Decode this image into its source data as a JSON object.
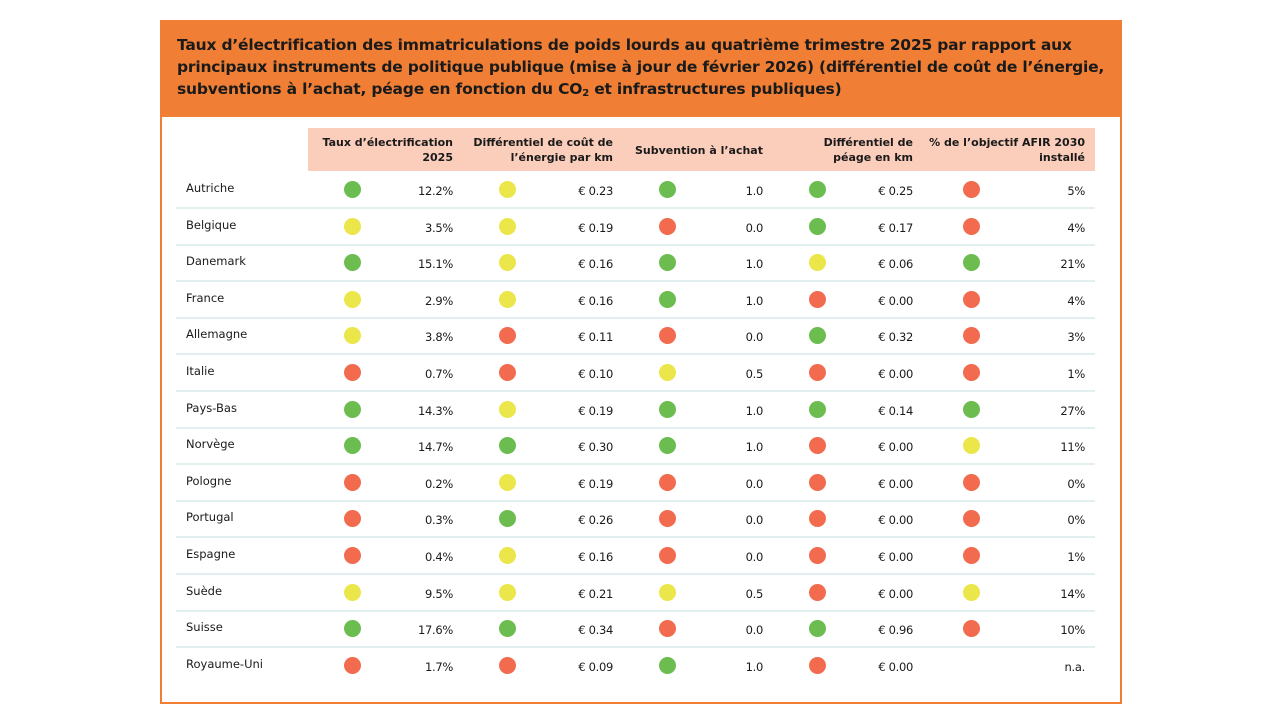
{
  "title": {
    "line1": "Taux d’électrification des immatriculations de poids lourds au quatrième trimestre 2025 par rapport aux",
    "line2": "principaux instruments de politique publique (mise à jour de février 2026) (différentiel de coût de l’énergie,",
    "line3_before_sub": "subventions à l’achat, péage en fonction du CO",
    "line3_sub": "2",
    "line3_after_sub": " et infrastructures publiques)"
  },
  "colors": {
    "brand": "#f07f35",
    "header_band": "#fbcdbb",
    "green": "#6cbd4f",
    "yellow": "#ebe649",
    "red": "#f26b4e",
    "divider": "#e2eef0"
  },
  "columns": [
    {
      "key": "elec",
      "line1": "Taux d’électrification",
      "line2": "2025"
    },
    {
      "key": "energy",
      "line1": "Différentiel de coût de",
      "line2": "l’énergie par km"
    },
    {
      "key": "subsidy",
      "line1": "Subvention à l’achat",
      "line2": ""
    },
    {
      "key": "toll",
      "line1": "Différentiel de",
      "line2": "péage en km"
    },
    {
      "key": "afir",
      "line1": "% de l’objectif AFIR 2030",
      "line2": "installé"
    }
  ],
  "chart_data": {
    "type": "table",
    "title": "Taux d’électrification des immatriculations de poids lourds au quatrième trimestre 2025 par rapport aux principaux instruments de politique publique (mise à jour de février 2026) (différentiel de coût de l’énergie, subventions à l’achat, péage en fonction du CO2 et infrastructures publiques)",
    "rows": [
      {
        "country": "Autriche",
        "cells": [
          [
            "green",
            "12.2%"
          ],
          [
            "yellow",
            "€ 0.23"
          ],
          [
            "green",
            "1.0"
          ],
          [
            "green",
            "€ 0.25"
          ],
          [
            "red",
            "5%"
          ]
        ]
      },
      {
        "country": "Belgique",
        "cells": [
          [
            "yellow",
            "3.5%"
          ],
          [
            "yellow",
            "€ 0.19"
          ],
          [
            "red",
            "0.0"
          ],
          [
            "green",
            "€ 0.17"
          ],
          [
            "red",
            "4%"
          ]
        ]
      },
      {
        "country": "Danemark",
        "cells": [
          [
            "green",
            "15.1%"
          ],
          [
            "yellow",
            "€ 0.16"
          ],
          [
            "green",
            "1.0"
          ],
          [
            "yellow",
            "€ 0.06"
          ],
          [
            "green",
            "21%"
          ]
        ]
      },
      {
        "country": "France",
        "cells": [
          [
            "yellow",
            "2.9%"
          ],
          [
            "yellow",
            "€ 0.16"
          ],
          [
            "green",
            "1.0"
          ],
          [
            "red",
            "€ 0.00"
          ],
          [
            "red",
            "4%"
          ]
        ]
      },
      {
        "country": "Allemagne",
        "cells": [
          [
            "yellow",
            "3.8%"
          ],
          [
            "red",
            "€ 0.11"
          ],
          [
            "red",
            "0.0"
          ],
          [
            "green",
            "€ 0.32"
          ],
          [
            "red",
            "3%"
          ]
        ]
      },
      {
        "country": "Italie",
        "cells": [
          [
            "red",
            "0.7%"
          ],
          [
            "red",
            "€ 0.10"
          ],
          [
            "yellow",
            "0.5"
          ],
          [
            "red",
            "€ 0.00"
          ],
          [
            "red",
            "1%"
          ]
        ]
      },
      {
        "country": "Pays-Bas",
        "cells": [
          [
            "green",
            "14.3%"
          ],
          [
            "yellow",
            "€ 0.19"
          ],
          [
            "green",
            "1.0"
          ],
          [
            "green",
            "€ 0.14"
          ],
          [
            "green",
            "27%"
          ]
        ]
      },
      {
        "country": "Norvège",
        "cells": [
          [
            "green",
            "14.7%"
          ],
          [
            "green",
            "€ 0.30"
          ],
          [
            "green",
            "1.0"
          ],
          [
            "red",
            "€ 0.00"
          ],
          [
            "yellow",
            "11%"
          ]
        ]
      },
      {
        "country": "Pologne",
        "cells": [
          [
            "red",
            "0.2%"
          ],
          [
            "yellow",
            "€ 0.19"
          ],
          [
            "red",
            "0.0"
          ],
          [
            "red",
            "€ 0.00"
          ],
          [
            "red",
            "0%"
          ]
        ]
      },
      {
        "country": "Portugal",
        "cells": [
          [
            "red",
            "0.3%"
          ],
          [
            "green",
            "€ 0.26"
          ],
          [
            "red",
            "0.0"
          ],
          [
            "red",
            "€ 0.00"
          ],
          [
            "red",
            "0%"
          ]
        ]
      },
      {
        "country": "Espagne",
        "cells": [
          [
            "red",
            "0.4%"
          ],
          [
            "yellow",
            "€ 0.16"
          ],
          [
            "red",
            "0.0"
          ],
          [
            "red",
            "€ 0.00"
          ],
          [
            "red",
            "1%"
          ]
        ]
      },
      {
        "country": "Suède",
        "cells": [
          [
            "yellow",
            "9.5%"
          ],
          [
            "yellow",
            "€ 0.21"
          ],
          [
            "yellow",
            "0.5"
          ],
          [
            "red",
            "€ 0.00"
          ],
          [
            "yellow",
            "14%"
          ]
        ]
      },
      {
        "country": "Suisse",
        "cells": [
          [
            "green",
            "17.6%"
          ],
          [
            "green",
            "€ 0.34"
          ],
          [
            "red",
            "0.0"
          ],
          [
            "green",
            "€ 0.96"
          ],
          [
            "red",
            "10%"
          ]
        ]
      },
      {
        "country": "Royaume-Uni",
        "cells": [
          [
            "red",
            "1.7%"
          ],
          [
            "red",
            "€ 0.09"
          ],
          [
            "green",
            "1.0"
          ],
          [
            "red",
            "€ 0.00"
          ],
          [
            null,
            "n.a."
          ]
        ]
      }
    ]
  }
}
